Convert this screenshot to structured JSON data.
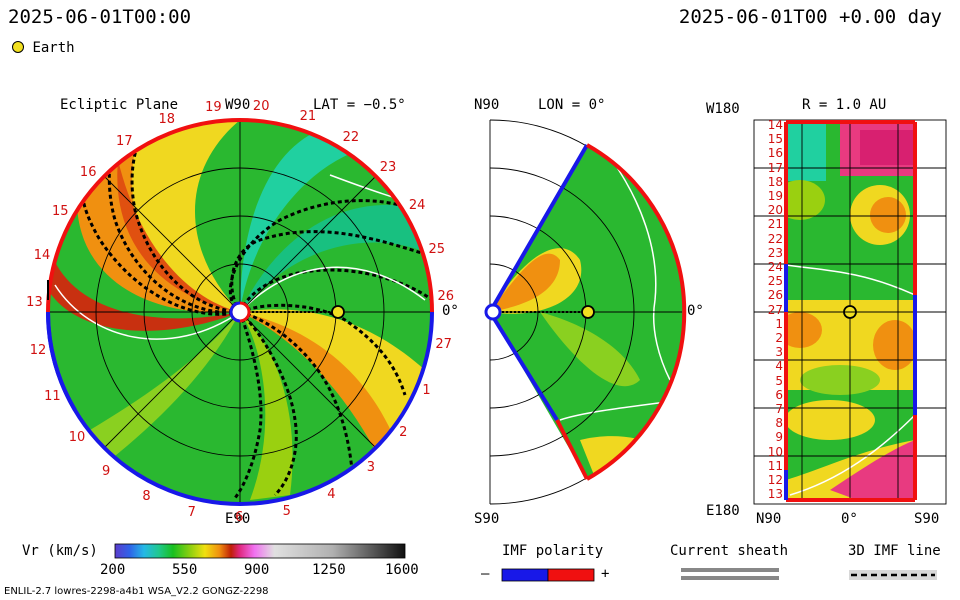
{
  "header": {
    "left_time": "2025-06-01T00:00",
    "right_time": "2025-06-01T00 +0.00 day"
  },
  "legend": {
    "earth_label": "Earth"
  },
  "panels": {
    "ecliptic": {
      "title": "Ecliptic Plane",
      "top_label": "W90",
      "bottom_label": "E90",
      "right_label": "0°",
      "lat_label": "LAT = −0.5°",
      "rotation_numbers": [
        "19",
        "20",
        "21",
        "22",
        "23",
        "24",
        "25",
        "26",
        "27",
        "1",
        "2",
        "3",
        "4",
        "5",
        "6",
        "7",
        "8",
        "9",
        "10",
        "11",
        "12",
        "13",
        "14",
        "15",
        "16",
        "17",
        "18"
      ]
    },
    "meridional": {
      "top_label": "N90",
      "bottom_label": "S90",
      "lon_label": "LON = 0°",
      "right_label": "0°"
    },
    "radial": {
      "title": "R = 1.0 AU",
      "top_left": "W180",
      "bottom_left": "E180",
      "x_left": "N90",
      "x_mid": "0°",
      "x_right": "S90",
      "row_labels": [
        "14",
        "15",
        "16",
        "17",
        "18",
        "19",
        "20",
        "21",
        "22",
        "23",
        "24",
        "25",
        "26",
        "27",
        "1",
        "2",
        "3",
        "4",
        "5",
        "6",
        "7",
        "8",
        "9",
        "10",
        "11",
        "12",
        "13"
      ]
    }
  },
  "colorbar": {
    "label": "Vr (km/s)",
    "ticks": [
      "200",
      "550",
      "900",
      "1250",
      "1600"
    ]
  },
  "imf_polarity": {
    "label": "IMF polarity",
    "minus": "–",
    "plus": "+"
  },
  "current_sheath": {
    "label": "Current sheath"
  },
  "imf_line": {
    "label": "3D IMF line"
  },
  "footer": {
    "text": "ENLIL-2.7 lowres-2298-a4b1 WSA_V2.2 GONGZ-2298"
  },
  "colors": {
    "neg": "#1818e8",
    "pos": "#f01010",
    "earth": "#f2e020"
  }
}
